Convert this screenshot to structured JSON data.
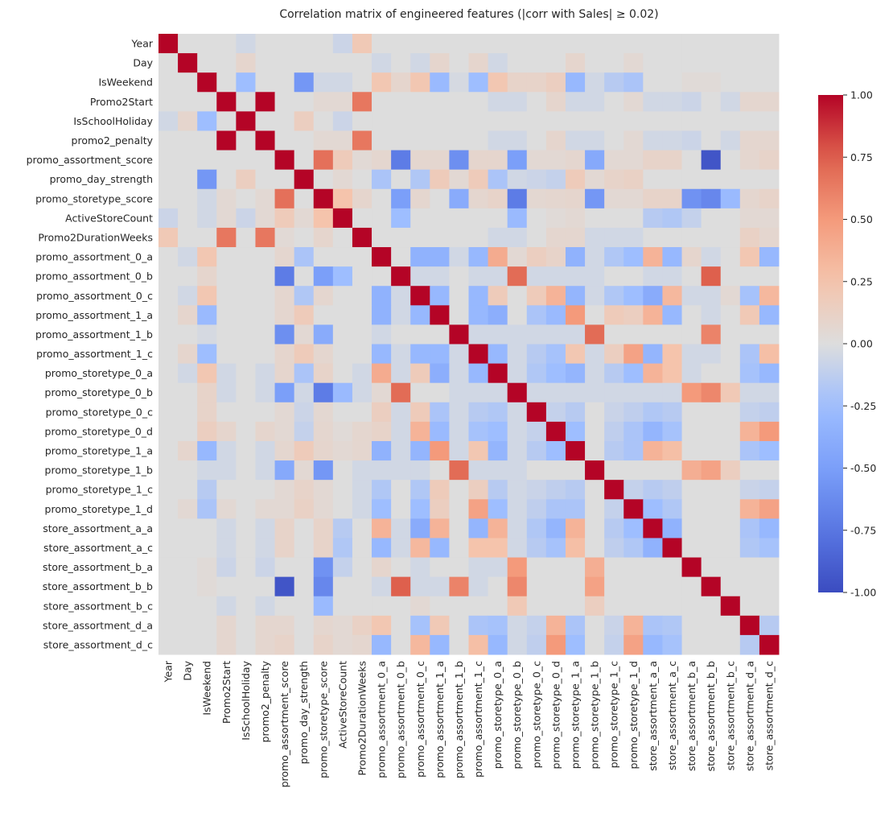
{
  "chart_data": {
    "type": "heatmap",
    "title": "Correlation matrix of engineered features (|corr with Sales| ≥ 0.02)",
    "colormap": "coolwarm",
    "vmin": -1,
    "vmax": 1,
    "colorbar_ticks": [
      "1.00",
      "0.75",
      "0.50",
      "0.25",
      "0.00",
      "-0.25",
      "-0.50",
      "-0.75",
      "-1.00"
    ],
    "colorbar_tick_values": [
      1,
      0.75,
      0.5,
      0.25,
      0,
      -0.25,
      -0.5,
      -0.75,
      -1
    ],
    "labels": [
      "Year",
      "Day",
      "IsWeekend",
      "Promo2Start",
      "IsSchoolHoliday",
      "promo2_penalty",
      "promo_assortment_score",
      "promo_day_strength",
      "promo_storetype_score",
      "ActiveStoreCount",
      "Promo2DurationWeeks",
      "promo_assortment_0_a",
      "promo_assortment_0_b",
      "promo_assortment_0_c",
      "promo_assortment_1_a",
      "promo_assortment_1_b",
      "promo_assortment_1_c",
      "promo_storetype_0_a",
      "promo_storetype_0_b",
      "promo_storetype_0_c",
      "promo_storetype_0_d",
      "promo_storetype_1_a",
      "promo_storetype_1_b",
      "promo_storetype_1_c",
      "promo_storetype_1_d",
      "store_assortment_a_a",
      "store_assortment_a_c",
      "store_assortment_b_a",
      "store_assortment_b_b",
      "store_assortment_b_c",
      "store_assortment_d_a",
      "store_assortment_d_c"
    ],
    "symmetric_entries_row_col_value": [
      [
        0,
        4,
        -0.05
      ],
      [
        0,
        9,
        -0.07
      ],
      [
        0,
        10,
        0.2
      ],
      [
        1,
        4,
        0.08
      ],
      [
        1,
        11,
        -0.05
      ],
      [
        1,
        13,
        -0.05
      ],
      [
        1,
        14,
        0.08
      ],
      [
        1,
        16,
        0.08
      ],
      [
        1,
        17,
        -0.05
      ],
      [
        1,
        21,
        0.08
      ],
      [
        1,
        24,
        0.05
      ],
      [
        2,
        4,
        -0.25
      ],
      [
        2,
        7,
        -0.55
      ],
      [
        2,
        8,
        -0.05
      ],
      [
        2,
        9,
        -0.05
      ],
      [
        2,
        11,
        0.22
      ],
      [
        2,
        12,
        0.08
      ],
      [
        2,
        13,
        0.22
      ],
      [
        2,
        14,
        -0.28
      ],
      [
        2,
        15,
        -0.03
      ],
      [
        2,
        16,
        -0.25
      ],
      [
        2,
        17,
        0.22
      ],
      [
        2,
        18,
        0.1
      ],
      [
        2,
        19,
        0.1
      ],
      [
        2,
        20,
        0.15
      ],
      [
        2,
        21,
        -0.3
      ],
      [
        2,
        22,
        -0.05
      ],
      [
        2,
        23,
        -0.15
      ],
      [
        2,
        24,
        -0.2
      ],
      [
        2,
        27,
        0.03
      ],
      [
        2,
        28,
        0.03
      ],
      [
        3,
        5,
        1.0
      ],
      [
        3,
        8,
        0.05
      ],
      [
        3,
        9,
        0.05
      ],
      [
        3,
        10,
        0.65
      ],
      [
        3,
        17,
        -0.05
      ],
      [
        3,
        18,
        -0.05
      ],
      [
        3,
        20,
        0.08
      ],
      [
        3,
        21,
        -0.05
      ],
      [
        3,
        22,
        -0.05
      ],
      [
        3,
        24,
        0.05
      ],
      [
        3,
        25,
        -0.05
      ],
      [
        3,
        26,
        -0.05
      ],
      [
        3,
        27,
        -0.07
      ],
      [
        3,
        29,
        -0.05
      ],
      [
        3,
        30,
        0.07
      ],
      [
        3,
        31,
        0.07
      ],
      [
        4,
        7,
        0.15
      ],
      [
        4,
        9,
        -0.07
      ],
      [
        5,
        8,
        0.05
      ],
      [
        5,
        9,
        0.05
      ],
      [
        5,
        10,
        0.65
      ],
      [
        5,
        17,
        -0.05
      ],
      [
        5,
        18,
        -0.05
      ],
      [
        5,
        20,
        0.08
      ],
      [
        5,
        21,
        -0.05
      ],
      [
        5,
        22,
        -0.05
      ],
      [
        5,
        24,
        0.05
      ],
      [
        5,
        25,
        -0.05
      ],
      [
        5,
        26,
        -0.05
      ],
      [
        5,
        27,
        -0.07
      ],
      [
        5,
        29,
        -0.05
      ],
      [
        5,
        30,
        0.07
      ],
      [
        5,
        31,
        0.07
      ],
      [
        6,
        8,
        0.68
      ],
      [
        6,
        9,
        0.18
      ],
      [
        6,
        10,
        0.04
      ],
      [
        6,
        11,
        0.07
      ],
      [
        6,
        12,
        -0.72
      ],
      [
        6,
        13,
        0.07
      ],
      [
        6,
        14,
        0.07
      ],
      [
        6,
        15,
        -0.6
      ],
      [
        6,
        16,
        0.08
      ],
      [
        6,
        17,
        0.08
      ],
      [
        6,
        18,
        -0.5
      ],
      [
        6,
        19,
        0.05
      ],
      [
        6,
        20,
        0.05
      ],
      [
        6,
        21,
        0.07
      ],
      [
        6,
        22,
        -0.42
      ],
      [
        6,
        23,
        0.05
      ],
      [
        6,
        24,
        0.05
      ],
      [
        6,
        25,
        0.1
      ],
      [
        6,
        26,
        0.1
      ],
      [
        6,
        28,
        -0.95
      ],
      [
        6,
        30,
        0.07
      ],
      [
        6,
        31,
        0.1
      ],
      [
        7,
        9,
        0.05
      ],
      [
        7,
        11,
        -0.2
      ],
      [
        7,
        13,
        -0.18
      ],
      [
        7,
        14,
        0.18
      ],
      [
        7,
        15,
        0.05
      ],
      [
        7,
        16,
        0.18
      ],
      [
        7,
        17,
        -0.2
      ],
      [
        7,
        18,
        -0.05
      ],
      [
        7,
        19,
        -0.07
      ],
      [
        7,
        20,
        -0.1
      ],
      [
        7,
        21,
        0.18
      ],
      [
        7,
        22,
        0.05
      ],
      [
        7,
        23,
        0.1
      ],
      [
        7,
        24,
        0.12
      ],
      [
        8,
        9,
        0.25
      ],
      [
        8,
        10,
        0.08
      ],
      [
        8,
        12,
        -0.5
      ],
      [
        8,
        13,
        0.07
      ],
      [
        8,
        15,
        -0.4
      ],
      [
        8,
        16,
        0.07
      ],
      [
        8,
        17,
        0.1
      ],
      [
        8,
        18,
        -0.72
      ],
      [
        8,
        19,
        0.06
      ],
      [
        8,
        20,
        0.07
      ],
      [
        8,
        21,
        0.08
      ],
      [
        8,
        22,
        -0.55
      ],
      [
        8,
        23,
        0.05
      ],
      [
        8,
        24,
        0.05
      ],
      [
        8,
        25,
        0.1
      ],
      [
        8,
        26,
        0.1
      ],
      [
        8,
        27,
        -0.58
      ],
      [
        8,
        28,
        -0.65
      ],
      [
        8,
        29,
        -0.28
      ],
      [
        8,
        30,
        0.07
      ],
      [
        8,
        31,
        0.1
      ],
      [
        9,
        12,
        -0.25
      ],
      [
        9,
        18,
        -0.28
      ],
      [
        9,
        20,
        0.03
      ],
      [
        9,
        21,
        0.05
      ],
      [
        9,
        25,
        -0.15
      ],
      [
        9,
        26,
        -0.18
      ],
      [
        9,
        27,
        -0.1
      ],
      [
        9,
        30,
        0.05
      ],
      [
        9,
        31,
        0.05
      ],
      [
        10,
        17,
        -0.05
      ],
      [
        10,
        18,
        -0.05
      ],
      [
        10,
        20,
        0.07
      ],
      [
        10,
        21,
        0.07
      ],
      [
        10,
        22,
        -0.05
      ],
      [
        10,
        23,
        -0.05
      ],
      [
        10,
        24,
        -0.05
      ],
      [
        10,
        30,
        0.12
      ],
      [
        10,
        31,
        0.07
      ],
      [
        11,
        13,
        -0.35
      ],
      [
        11,
        14,
        -0.35
      ],
      [
        11,
        15,
        -0.05
      ],
      [
        11,
        16,
        -0.3
      ],
      [
        11,
        17,
        0.4
      ],
      [
        11,
        18,
        0.05
      ],
      [
        11,
        19,
        0.15
      ],
      [
        11,
        20,
        0.1
      ],
      [
        11,
        21,
        -0.35
      ],
      [
        11,
        22,
        -0.05
      ],
      [
        11,
        23,
        -0.18
      ],
      [
        11,
        24,
        -0.25
      ],
      [
        11,
        25,
        0.35
      ],
      [
        11,
        26,
        -0.3
      ],
      [
        11,
        27,
        0.08
      ],
      [
        11,
        28,
        -0.05
      ],
      [
        11,
        30,
        0.22
      ],
      [
        11,
        31,
        -0.3
      ],
      [
        12,
        13,
        -0.05
      ],
      [
        12,
        14,
        -0.05
      ],
      [
        12,
        18,
        0.7
      ],
      [
        12,
        28,
        0.75
      ],
      [
        12,
        16,
        -0.05
      ],
      [
        12,
        17,
        -0.05
      ],
      [
        12,
        19,
        -0.05
      ],
      [
        12,
        20,
        -0.05
      ],
      [
        12,
        21,
        -0.05
      ],
      [
        12,
        22,
        -0.05
      ],
      [
        12,
        25,
        -0.05
      ],
      [
        12,
        26,
        -0.05
      ],
      [
        13,
        14,
        -0.3
      ],
      [
        13,
        16,
        -0.3
      ],
      [
        13,
        17,
        0.18
      ],
      [
        13,
        19,
        0.18
      ],
      [
        13,
        20,
        0.35
      ],
      [
        13,
        21,
        -0.32
      ],
      [
        13,
        22,
        -0.05
      ],
      [
        13,
        23,
        -0.18
      ],
      [
        13,
        24,
        -0.25
      ],
      [
        13,
        25,
        -0.4
      ],
      [
        13,
        26,
        0.32
      ],
      [
        13,
        27,
        -0.05
      ],
      [
        13,
        28,
        -0.05
      ],
      [
        13,
        29,
        0.05
      ],
      [
        13,
        30,
        -0.22
      ],
      [
        13,
        31,
        0.32
      ],
      [
        14,
        16,
        -0.3
      ],
      [
        14,
        17,
        -0.38
      ],
      [
        14,
        19,
        -0.2
      ],
      [
        14,
        20,
        -0.28
      ],
      [
        14,
        21,
        0.5
      ],
      [
        14,
        23,
        0.18
      ],
      [
        14,
        24,
        0.15
      ],
      [
        14,
        25,
        0.35
      ],
      [
        14,
        26,
        -0.3
      ],
      [
        14,
        28,
        -0.05
      ],
      [
        14,
        30,
        0.2
      ],
      [
        14,
        31,
        -0.3
      ],
      [
        15,
        22,
        0.7
      ],
      [
        15,
        28,
        0.6
      ],
      [
        15,
        16,
        -0.05
      ],
      [
        15,
        17,
        -0.05
      ],
      [
        15,
        18,
        -0.05
      ],
      [
        15,
        19,
        -0.05
      ],
      [
        15,
        20,
        -0.05
      ],
      [
        15,
        21,
        -0.05
      ],
      [
        16,
        17,
        -0.3
      ],
      [
        16,
        18,
        -0.05
      ],
      [
        16,
        19,
        -0.15
      ],
      [
        16,
        20,
        -0.22
      ],
      [
        16,
        21,
        0.22
      ],
      [
        16,
        22,
        -0.05
      ],
      [
        16,
        23,
        0.15
      ],
      [
        16,
        24,
        0.45
      ],
      [
        16,
        25,
        -0.32
      ],
      [
        16,
        26,
        0.25
      ],
      [
        16,
        27,
        -0.05
      ],
      [
        16,
        28,
        -0.05
      ],
      [
        16,
        30,
        -0.2
      ],
      [
        16,
        31,
        0.28
      ],
      [
        17,
        18,
        -0.05
      ],
      [
        17,
        19,
        -0.18
      ],
      [
        17,
        20,
        -0.25
      ],
      [
        17,
        21,
        -0.32
      ],
      [
        17,
        22,
        -0.05
      ],
      [
        17,
        23,
        -0.15
      ],
      [
        17,
        24,
        -0.25
      ],
      [
        17,
        25,
        0.35
      ],
      [
        17,
        26,
        0.25
      ],
      [
        17,
        27,
        -0.05
      ],
      [
        17,
        30,
        -0.22
      ],
      [
        17,
        31,
        -0.3
      ],
      [
        18,
        19,
        -0.05
      ],
      [
        18,
        20,
        -0.05
      ],
      [
        18,
        21,
        -0.05
      ],
      [
        18,
        22,
        -0.05
      ],
      [
        18,
        23,
        -0.05
      ],
      [
        18,
        24,
        -0.05
      ],
      [
        18,
        25,
        -0.05
      ],
      [
        18,
        26,
        -0.05
      ],
      [
        18,
        27,
        0.5
      ],
      [
        18,
        28,
        0.58
      ],
      [
        18,
        29,
        0.2
      ],
      [
        18,
        30,
        -0.05
      ],
      [
        18,
        31,
        -0.05
      ],
      [
        19,
        20,
        -0.1
      ],
      [
        19,
        21,
        -0.15
      ],
      [
        19,
        23,
        -0.08
      ],
      [
        19,
        24,
        -0.12
      ],
      [
        19,
        25,
        -0.18
      ],
      [
        19,
        26,
        -0.15
      ],
      [
        19,
        30,
        -0.1
      ],
      [
        19,
        31,
        -0.12
      ],
      [
        20,
        21,
        -0.25
      ],
      [
        20,
        23,
        -0.12
      ],
      [
        20,
        24,
        -0.2
      ],
      [
        20,
        25,
        -0.32
      ],
      [
        20,
        26,
        -0.22
      ],
      [
        20,
        30,
        0.35
      ],
      [
        20,
        31,
        0.5
      ],
      [
        21,
        23,
        -0.15
      ],
      [
        21,
        24,
        -0.2
      ],
      [
        21,
        25,
        0.35
      ],
      [
        21,
        26,
        0.28
      ],
      [
        21,
        30,
        -0.2
      ],
      [
        21,
        31,
        -0.25
      ],
      [
        22,
        27,
        0.38
      ],
      [
        22,
        28,
        0.45
      ],
      [
        22,
        29,
        0.15
      ],
      [
        23,
        24,
        -0.1
      ],
      [
        23,
        25,
        -0.15
      ],
      [
        23,
        26,
        -0.12
      ],
      [
        23,
        30,
        -0.08
      ],
      [
        23,
        31,
        -0.1
      ],
      [
        24,
        25,
        -0.25
      ],
      [
        24,
        26,
        -0.18
      ],
      [
        24,
        30,
        0.35
      ],
      [
        24,
        31,
        0.45
      ],
      [
        25,
        26,
        -0.35
      ],
      [
        25,
        30,
        -0.2
      ],
      [
        25,
        31,
        -0.3
      ],
      [
        26,
        30,
        -0.18
      ],
      [
        26,
        31,
        -0.22
      ],
      [
        30,
        31,
        -0.15
      ]
    ]
  }
}
